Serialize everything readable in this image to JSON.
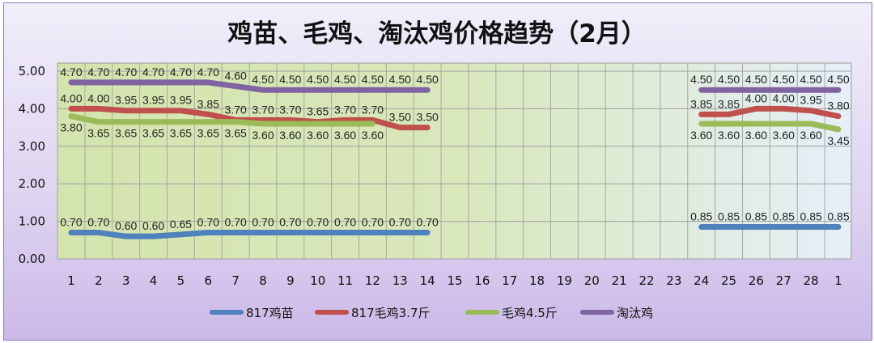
{
  "chart_data": {
    "type": "line",
    "title": "鸡苗、毛鸡、淘汰鸡价格趋势（2月）",
    "categories": [
      "1",
      "2",
      "3",
      "4",
      "5",
      "6",
      "7",
      "8",
      "9",
      "10",
      "11",
      "12",
      "13",
      "14",
      "15",
      "16",
      "17",
      "18",
      "19",
      "20",
      "21",
      "22",
      "23",
      "24",
      "25",
      "26",
      "27",
      "28",
      "1"
    ],
    "ylim": [
      0,
      5
    ],
    "yticks": [
      "0.00",
      "1.00",
      "2.00",
      "3.00",
      "4.00",
      "5.00"
    ],
    "grid": true,
    "legend_position": "bottom",
    "series": [
      {
        "name": "817鸡苗",
        "color": "#4f81bd",
        "values": [
          0.7,
          0.7,
          0.6,
          0.6,
          0.65,
          0.7,
          0.7,
          0.7,
          0.7,
          0.7,
          0.7,
          0.7,
          0.7,
          0.7,
          null,
          null,
          null,
          null,
          null,
          null,
          null,
          null,
          null,
          0.85,
          0.85,
          0.85,
          0.85,
          0.85,
          0.85
        ]
      },
      {
        "name": "817毛鸡3.7斤",
        "color": "#c0504d",
        "values": [
          4.0,
          4.0,
          3.95,
          3.95,
          3.95,
          3.85,
          3.7,
          3.7,
          3.7,
          3.65,
          3.7,
          3.7,
          3.5,
          3.5,
          null,
          null,
          null,
          null,
          null,
          null,
          null,
          null,
          null,
          3.85,
          3.85,
          4.0,
          4.0,
          3.95,
          3.8
        ]
      },
      {
        "name": "毛鸡4.5斤",
        "color": "#9bbb59",
        "values": [
          3.8,
          3.65,
          3.65,
          3.65,
          3.65,
          3.65,
          3.65,
          3.6,
          3.6,
          3.6,
          3.6,
          3.6,
          null,
          null,
          null,
          null,
          null,
          null,
          null,
          null,
          null,
          null,
          null,
          3.6,
          3.6,
          3.6,
          3.6,
          3.6,
          3.45
        ]
      },
      {
        "name": "淘汰鸡",
        "color": "#8064a2",
        "values": [
          4.7,
          4.7,
          4.7,
          4.7,
          4.7,
          4.7,
          4.6,
          4.5,
          4.5,
          4.5,
          4.5,
          4.5,
          4.5,
          4.5,
          null,
          null,
          null,
          null,
          null,
          null,
          null,
          null,
          null,
          4.5,
          4.5,
          4.5,
          4.5,
          4.5,
          4.5
        ]
      }
    ]
  }
}
